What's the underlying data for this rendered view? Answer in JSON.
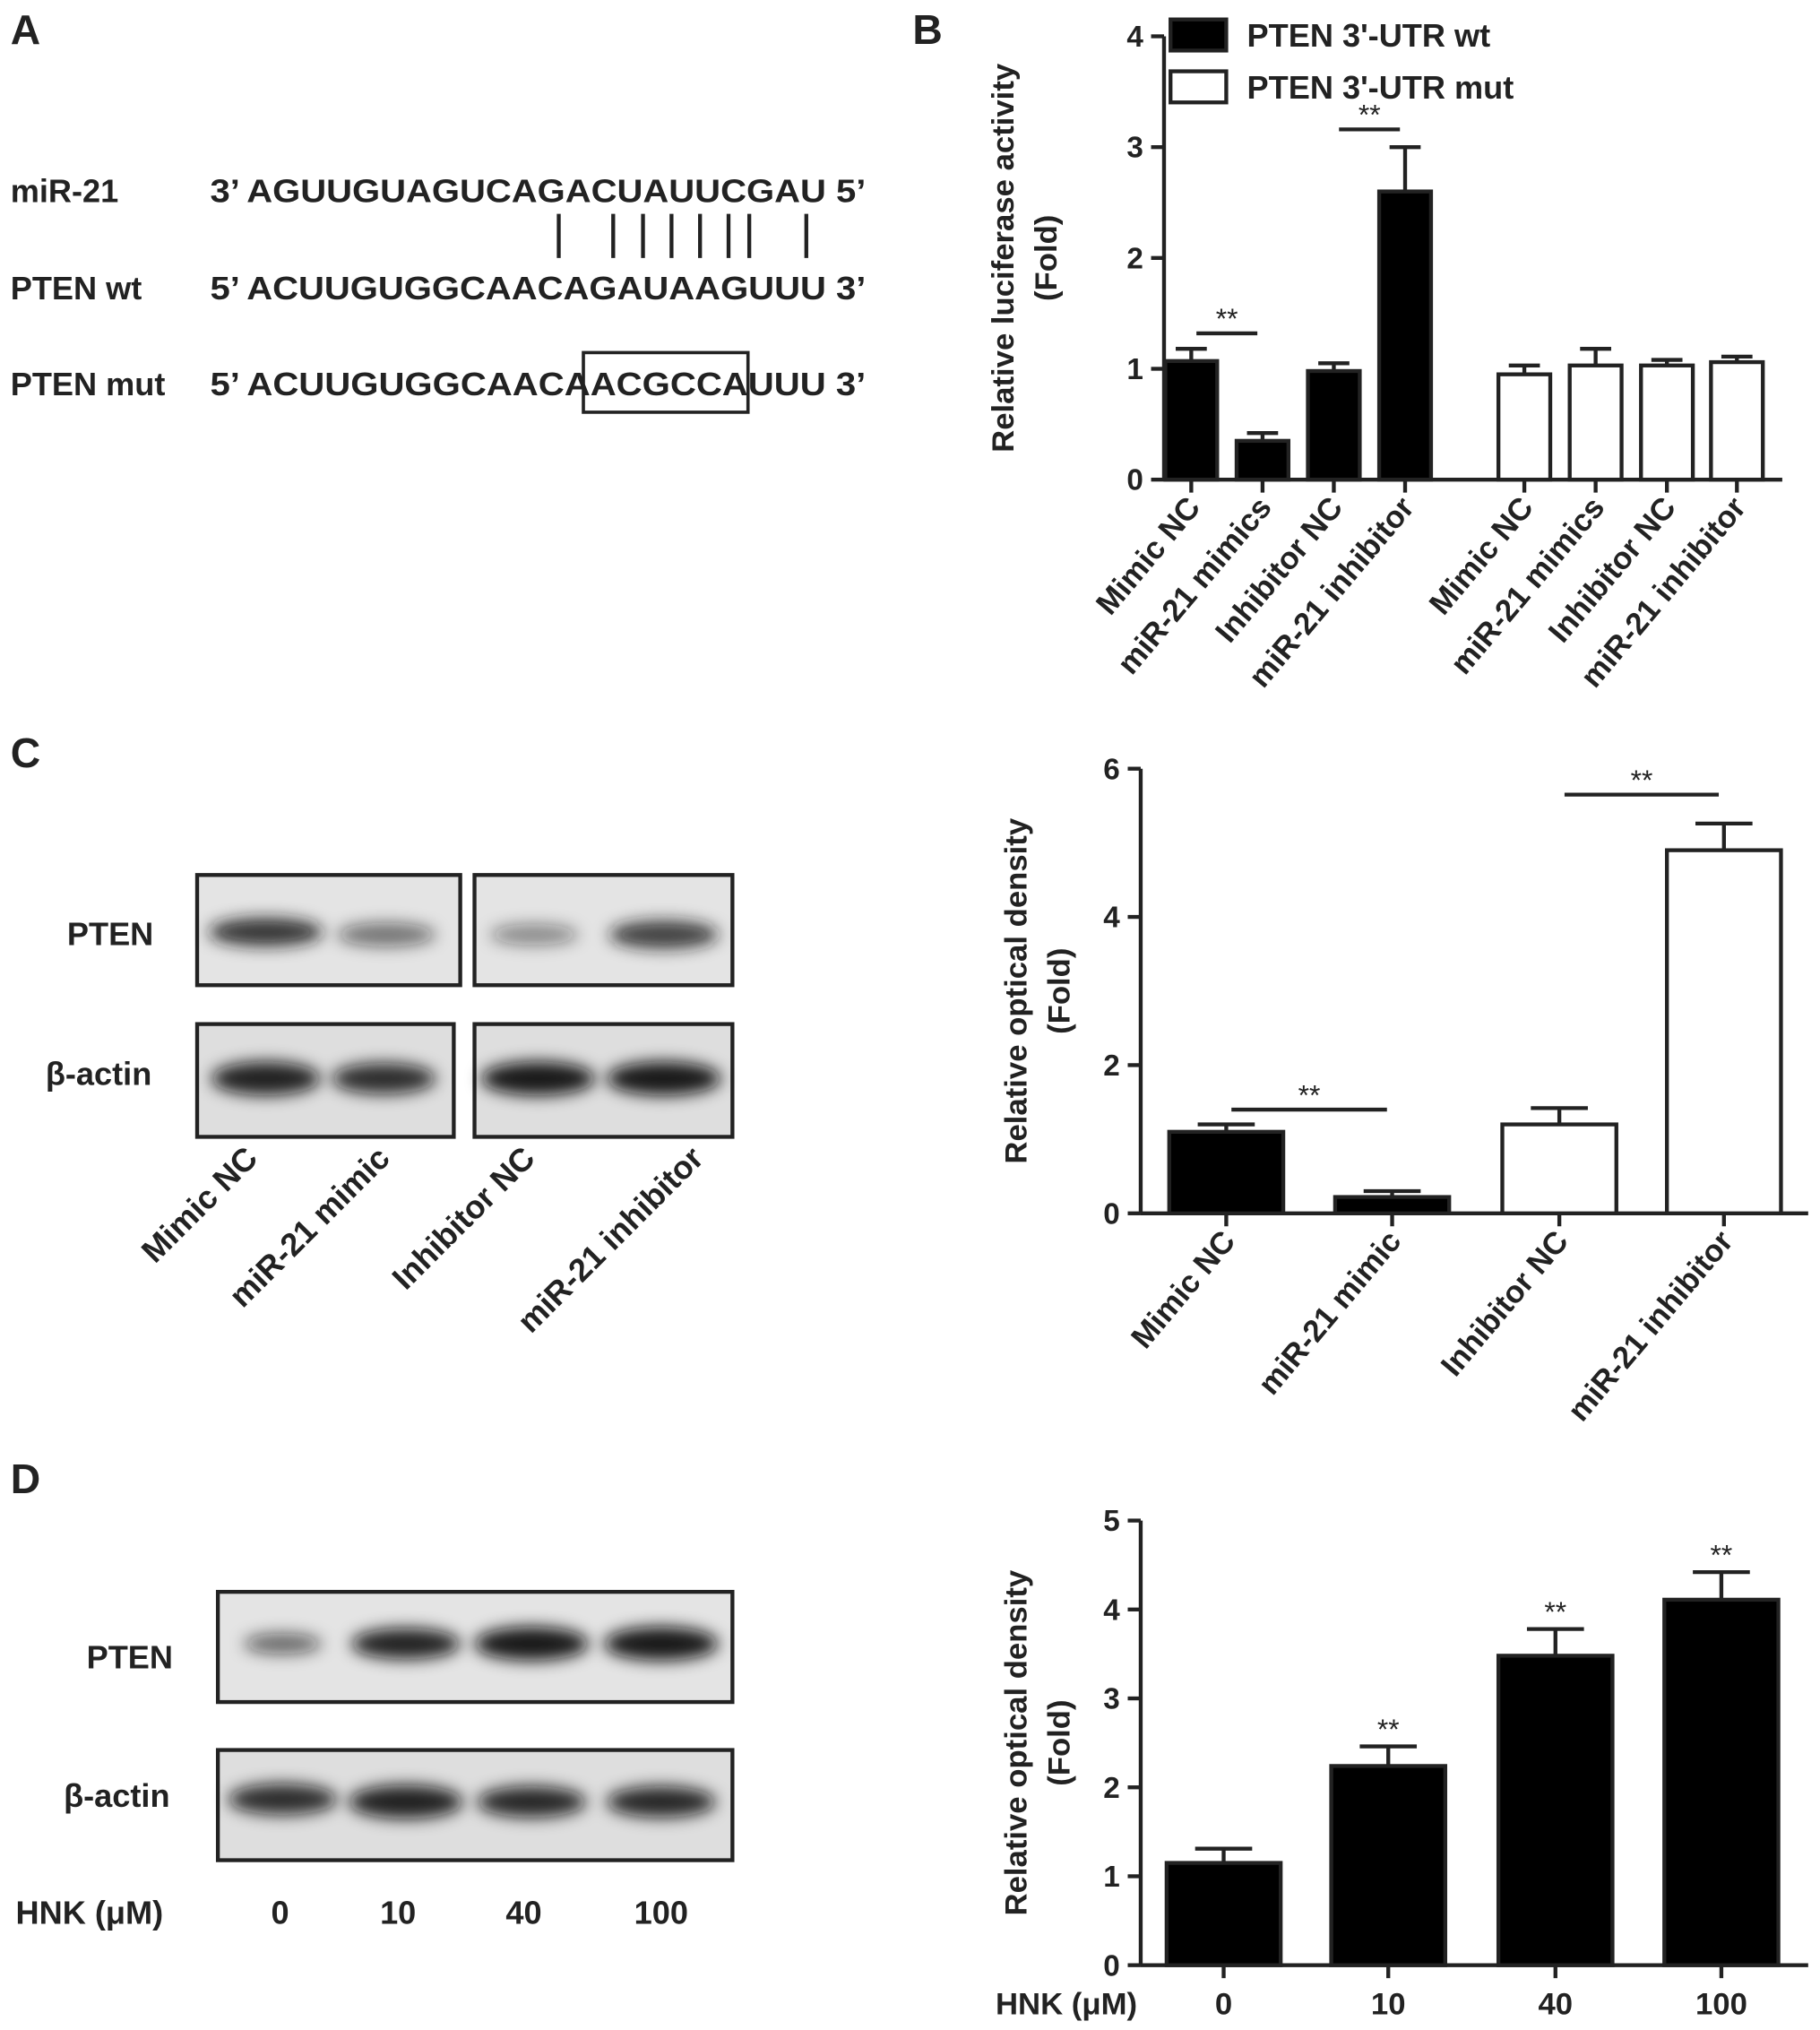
{
  "panels": {
    "labels": [
      "A",
      "B",
      "C",
      "D"
    ]
  },
  "alignment": {
    "rows": [
      {
        "label": "miR-21",
        "sequence": "3’ AGUUGUAGUCAGACUAUUCGAU 5’"
      },
      {
        "label": "PTEN wt",
        "sequence": "5’ ACUUGUGGCAACAGAUAAGUUU 3’"
      },
      {
        "label": "PTEN mut",
        "sequence": "5’ ACUUGUGGCAACAACGCCAUUU 3’"
      }
    ]
  },
  "blot_c": {
    "rows": [
      "PTEN",
      "β-actin"
    ],
    "lanes": [
      "Mimic NC",
      "miR-21 mimic",
      "Inhibitor NC",
      "miR-21 inhibitor"
    ]
  },
  "blot_d": {
    "rows": [
      "PTEN",
      "β-actin"
    ],
    "lane_title": "HNK (μM)",
    "lanes": [
      "0",
      "10",
      "40",
      "100"
    ]
  },
  "chart_data": [
    {
      "type": "bar",
      "ylabel": [
        "Relative luciferase activity",
        "(Fold)"
      ],
      "categories": [
        "Mimic NC",
        "miR-21 mimics",
        "Inhibitor NC",
        "miR-21 inhibitor",
        "Mimic NC",
        "miR-21 mimics",
        "Inhibitor NC",
        "miR-21 inhibitor"
      ],
      "series": [
        {
          "name": "PTEN 3'-UTR wt",
          "color": "#000000",
          "values": [
            1.07,
            0.35,
            0.98,
            2.6,
            null,
            null,
            null,
            null
          ],
          "errors": [
            0.11,
            0.07,
            0.07,
            0.4,
            null,
            null,
            null,
            null
          ]
        },
        {
          "name": "PTEN 3'-UTR mut",
          "color": "#ffffff",
          "values": [
            null,
            null,
            null,
            null,
            0.95,
            1.03,
            1.03,
            1.06
          ],
          "errors": [
            null,
            null,
            null,
            null,
            0.08,
            0.15,
            0.05,
            0.05
          ]
        }
      ],
      "ylim": [
        0,
        4
      ],
      "yticks": [
        0,
        1,
        2,
        3,
        4
      ],
      "legend": "upper left",
      "significance": [
        {
          "from": 0,
          "to": 1,
          "y": 1.32,
          "label": "**"
        },
        {
          "from": 2,
          "to": 3,
          "y": 3.16,
          "label": "**"
        }
      ]
    },
    {
      "type": "bar",
      "ylabel": [
        "Relative optical density",
        "(Fold)"
      ],
      "categories": [
        "Mimic NC",
        "miR-21 mimic",
        "Inhibitor NC",
        "miR-21 inhibitor"
      ],
      "values": [
        1.1,
        0.22,
        1.2,
        4.9
      ],
      "errors": [
        0.1,
        0.08,
        0.22,
        0.36
      ],
      "colors": [
        "#000000",
        "#000000",
        "#ffffff",
        "#ffffff"
      ],
      "ylim": [
        0,
        6
      ],
      "yticks": [
        0,
        2,
        4,
        6
      ],
      "significance": [
        {
          "from": 0,
          "to": 1,
          "y": 1.4,
          "label": "**"
        },
        {
          "from": 2,
          "to": 3,
          "y": 5.65,
          "label": "**"
        }
      ]
    },
    {
      "type": "bar",
      "ylabel": [
        "Relative optical density",
        "(Fold)"
      ],
      "xlabel": "HNK (μM)",
      "categories": [
        "0",
        "10",
        "40",
        "100"
      ],
      "values": [
        1.15,
        2.24,
        3.48,
        4.11
      ],
      "errors": [
        0.16,
        0.22,
        0.3,
        0.31
      ],
      "colors": [
        "#000000",
        "#000000",
        "#000000",
        "#000000"
      ],
      "annotations": [
        null,
        "**",
        "**",
        "**"
      ],
      "ylim": [
        0,
        5
      ],
      "yticks": [
        0,
        1,
        2,
        3,
        4,
        5
      ]
    }
  ]
}
